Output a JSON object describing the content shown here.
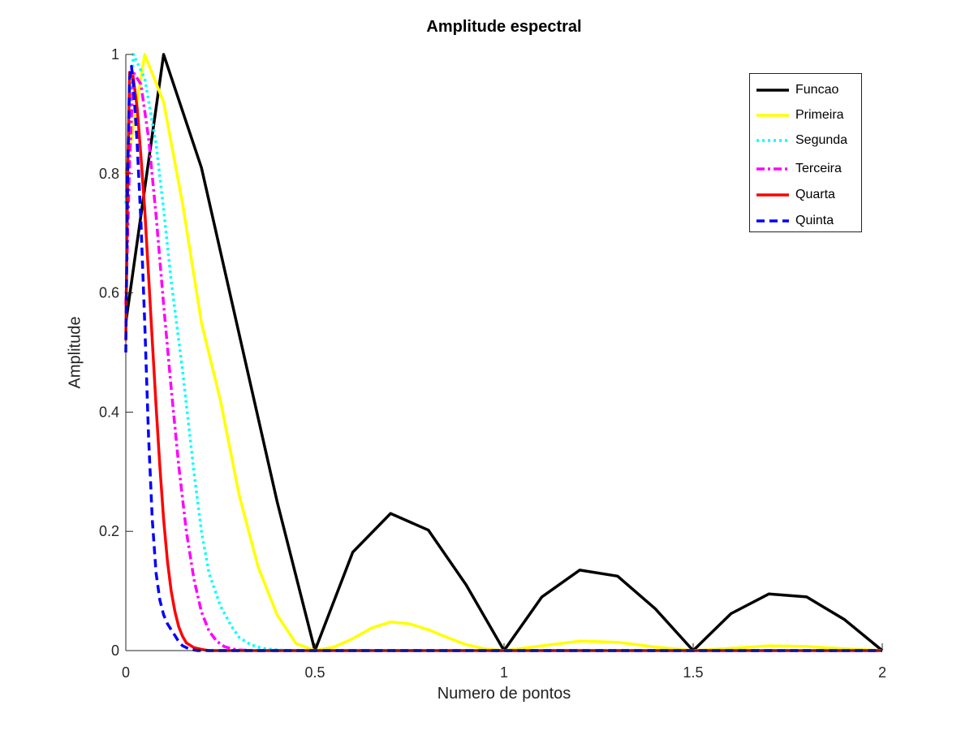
{
  "chart_data": {
    "type": "line",
    "title": "Amplitude espectral",
    "xlabel": "Numero de  pontos",
    "ylabel": "Amplitude",
    "xlim": [
      0,
      2
    ],
    "ylim": [
      0,
      1
    ],
    "xticks": [
      0,
      0.5,
      1,
      1.5,
      2
    ],
    "xtick_labels": [
      "0",
      "0.5",
      "1",
      "1.5",
      "2"
    ],
    "yticks": [
      0,
      0.2,
      0.4,
      0.6,
      0.8,
      1
    ],
    "ytick_labels": [
      "0",
      "0.2",
      "0.4",
      "0.6",
      "0.8",
      "1"
    ],
    "grid": false,
    "legend_position": "top-right",
    "series": [
      {
        "name": "Funcao",
        "color": "#000000",
        "style": "solid",
        "x": [
          0,
          0.1,
          0.2,
          0.3,
          0.4,
          0.5,
          0.6,
          0.7,
          0.8,
          0.9,
          1.0,
          1.1,
          1.2,
          1.3,
          1.4,
          1.5,
          1.6,
          1.7,
          1.8,
          1.9,
          2.0
        ],
        "y": [
          0.55,
          1.0,
          0.81,
          0.53,
          0.25,
          0.0,
          0.165,
          0.23,
          0.202,
          0.11,
          0.0,
          0.09,
          0.135,
          0.125,
          0.07,
          0.0,
          0.062,
          0.095,
          0.09,
          0.052,
          0.0
        ]
      },
      {
        "name": "Primeira",
        "color": "#ffff00",
        "style": "solid",
        "x": [
          0,
          0.05,
          0.1,
          0.15,
          0.2,
          0.25,
          0.3,
          0.35,
          0.4,
          0.45,
          0.5,
          0.55,
          0.6,
          0.65,
          0.7,
          0.75,
          0.8,
          0.85,
          0.9,
          0.95,
          1.0,
          1.1,
          1.2,
          1.3,
          1.4,
          1.5,
          1.6,
          1.7,
          1.8,
          1.9,
          2.0
        ],
        "y": [
          0.8,
          1.0,
          0.92,
          0.75,
          0.55,
          0.42,
          0.26,
          0.14,
          0.06,
          0.012,
          0.0,
          0.006,
          0.02,
          0.038,
          0.048,
          0.045,
          0.035,
          0.022,
          0.01,
          0.003,
          0.0,
          0.008,
          0.016,
          0.014,
          0.006,
          0.0,
          0.004,
          0.008,
          0.007,
          0.003,
          0.0
        ]
      },
      {
        "name": "Segunda",
        "color": "#00ffff",
        "style": "dotted",
        "x": [
          0,
          0.02,
          0.05,
          0.08,
          0.1,
          0.12,
          0.15,
          0.18,
          0.2,
          0.22,
          0.25,
          0.28,
          0.3,
          0.33,
          0.36,
          0.4,
          0.45,
          0.5,
          1.0,
          1.5,
          2.0
        ],
        "y": [
          0.75,
          1.0,
          0.96,
          0.85,
          0.74,
          0.62,
          0.47,
          0.3,
          0.2,
          0.13,
          0.075,
          0.04,
          0.022,
          0.01,
          0.004,
          0.001,
          0.0,
          0.0,
          0.0,
          0.0,
          0.0
        ]
      },
      {
        "name": "Terceira",
        "color": "#ff00ff",
        "style": "dashdot",
        "x": [
          0,
          0.01,
          0.02,
          0.04,
          0.06,
          0.08,
          0.1,
          0.12,
          0.14,
          0.16,
          0.18,
          0.2,
          0.22,
          0.24,
          0.26,
          0.28,
          0.3,
          0.35,
          0.5,
          1.0,
          1.5,
          2.0
        ],
        "y": [
          0.58,
          0.82,
          0.97,
          0.95,
          0.86,
          0.73,
          0.58,
          0.44,
          0.31,
          0.2,
          0.12,
          0.065,
          0.033,
          0.016,
          0.007,
          0.003,
          0.001,
          0.0,
          0.0,
          0.0,
          0.0,
          0.0
        ]
      },
      {
        "name": "Quarta",
        "color": "#ff0000",
        "style": "solid",
        "x": [
          0,
          0.005,
          0.01,
          0.02,
          0.03,
          0.04,
          0.05,
          0.06,
          0.07,
          0.08,
          0.09,
          0.1,
          0.11,
          0.12,
          0.13,
          0.14,
          0.15,
          0.16,
          0.18,
          0.2,
          0.22,
          0.25,
          0.5,
          1.0,
          1.5,
          2.0
        ],
        "y": [
          0.52,
          0.8,
          0.97,
          0.96,
          0.91,
          0.83,
          0.74,
          0.63,
          0.52,
          0.41,
          0.31,
          0.22,
          0.15,
          0.1,
          0.065,
          0.04,
          0.024,
          0.013,
          0.005,
          0.002,
          0.0,
          0.0,
          0.0,
          0.0,
          0.0,
          0.0
        ]
      },
      {
        "name": "Quinta",
        "color": "#0000ff",
        "style": "dashed",
        "x": [
          0,
          0.005,
          0.01,
          0.015,
          0.02,
          0.03,
          0.04,
          0.05,
          0.06,
          0.07,
          0.08,
          0.09,
          0.1,
          0.11,
          0.12,
          0.13,
          0.14,
          0.15,
          0.17,
          0.19,
          0.22,
          0.3,
          0.5,
          1.0,
          1.5,
          2.0
        ],
        "y": [
          0.5,
          0.8,
          0.96,
          0.98,
          0.95,
          0.85,
          0.72,
          0.55,
          0.36,
          0.22,
          0.13,
          0.085,
          0.06,
          0.045,
          0.035,
          0.025,
          0.015,
          0.008,
          0.002,
          0.0,
          0.0,
          0.0,
          0.0,
          0.0,
          0.0,
          0.0
        ]
      }
    ]
  }
}
